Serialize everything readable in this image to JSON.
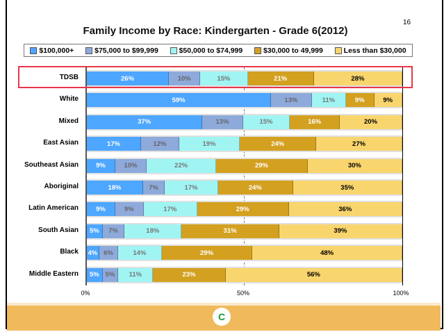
{
  "page_number": "16",
  "chart_data": {
    "type": "bar",
    "stacked": true,
    "orientation": "horizontal",
    "title": "Family Income by Race: Kindergarten - Grade 6(2012)",
    "xlim": [
      0,
      100
    ],
    "xticks": [
      "0%",
      "50%",
      "100%"
    ],
    "legend_position": "top",
    "highlighted_category": "TDSB",
    "categories": [
      "TDSB",
      "White",
      "Mixed",
      "East Asian",
      "Southeast Asian",
      "Aboriginal",
      "Latin American",
      "South Asian",
      "Black",
      "Middle Eastern"
    ],
    "series": [
      {
        "name": "$100,000+",
        "color": "#4da6ff",
        "label_color": "#ffffff",
        "values": [
          26,
          59,
          37,
          17,
          9,
          18,
          9,
          5,
          4,
          5
        ]
      },
      {
        "name": "$75,000 to $99,999",
        "color": "#8eaadb",
        "label_color": "#666666",
        "values": [
          10,
          13,
          13,
          12,
          10,
          7,
          9,
          7,
          6,
          5
        ]
      },
      {
        "name": "$50,000 to $74,999",
        "color": "#a0f5f3",
        "label_color": "#777777",
        "values": [
          15,
          11,
          15,
          19,
          22,
          17,
          17,
          18,
          14,
          11
        ]
      },
      {
        "name": "$30,000 to 49,999",
        "color": "#d3a020",
        "label_color": "#ffffff",
        "values": [
          21,
          9,
          16,
          24,
          29,
          24,
          29,
          31,
          29,
          23
        ]
      },
      {
        "name": "Less than $30,000",
        "color": "#f9d56e",
        "label_color": "#000000",
        "values": [
          28,
          9,
          20,
          27,
          30,
          35,
          36,
          39,
          48,
          56
        ]
      }
    ]
  }
}
